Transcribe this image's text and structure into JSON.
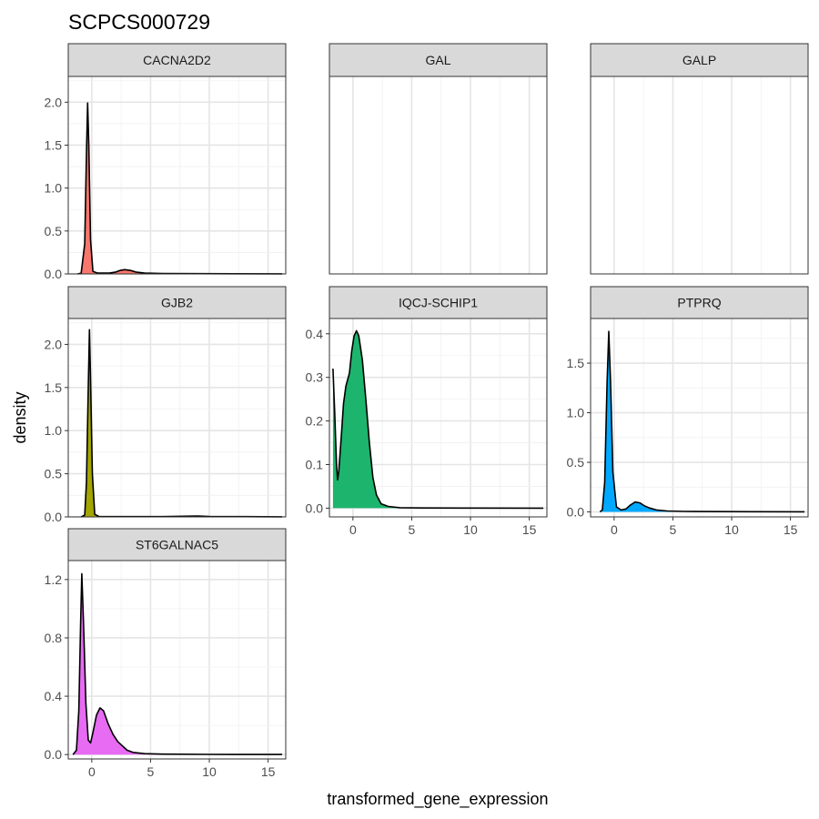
{
  "title": "SCPCS000729",
  "chart_data": {
    "type": "area",
    "title": "SCPCS000729",
    "xlabel": "transformed_gene_expression",
    "ylabel": "density",
    "xlim": [
      -2,
      16.5
    ],
    "x_ticks": [
      0,
      5,
      10,
      15
    ],
    "grid": true,
    "legend": "none",
    "facets": [
      {
        "name": "CACNA2D2",
        "color": "#F8766D",
        "ylim": [
          0,
          2.3
        ],
        "y_ticks": [
          0.0,
          0.5,
          1.0,
          1.5,
          2.0
        ],
        "points": [
          [
            -1.2,
            0
          ],
          [
            -0.9,
            0.01
          ],
          [
            -0.6,
            0.35
          ],
          [
            -0.45,
            1.4
          ],
          [
            -0.35,
            1.99
          ],
          [
            -0.25,
            1.5
          ],
          [
            -0.1,
            0.4
          ],
          [
            0.1,
            0.03
          ],
          [
            0.5,
            0.01
          ],
          [
            1.0,
            0.01
          ],
          [
            1.5,
            0.01
          ],
          [
            2.0,
            0.02
          ],
          [
            2.4,
            0.04
          ],
          [
            2.8,
            0.05
          ],
          [
            3.3,
            0.04
          ],
          [
            3.8,
            0.02
          ],
          [
            4.5,
            0.01
          ],
          [
            6,
            0.005
          ],
          [
            9,
            0.003
          ],
          [
            12,
            0.002
          ],
          [
            16.2,
            0.001
          ]
        ]
      },
      {
        "name": "GAL",
        "color": "#CD9600",
        "ylim": [
          0,
          2.3
        ],
        "y_ticks": [],
        "points": []
      },
      {
        "name": "GALP",
        "color": "#7CAE00",
        "ylim": [
          0,
          2.3
        ],
        "y_ticks": [],
        "points": []
      },
      {
        "name": "GJB2",
        "color": "#A3A500",
        "ylim": [
          0,
          2.3
        ],
        "y_ticks": [
          0.0,
          0.5,
          1.0,
          1.5,
          2.0
        ],
        "points": [
          [
            -0.9,
            0
          ],
          [
            -0.6,
            0.02
          ],
          [
            -0.45,
            0.4
          ],
          [
            -0.3,
            1.5
          ],
          [
            -0.2,
            2.17
          ],
          [
            -0.1,
            1.6
          ],
          [
            0.05,
            0.5
          ],
          [
            0.25,
            0.03
          ],
          [
            0.6,
            0.005
          ],
          [
            3,
            0.003
          ],
          [
            6,
            0.003
          ],
          [
            9,
            0.01
          ],
          [
            10,
            0.004
          ],
          [
            13,
            0.003
          ],
          [
            16.2,
            0.001
          ]
        ]
      },
      {
        "name": "IQCJ-SCHIP1",
        "color": "#1DB46E",
        "ylim": [
          -0.02,
          0.435
        ],
        "y_ticks": [
          0.0,
          0.1,
          0.2,
          0.3,
          0.4
        ],
        "points": [
          [
            -1.7,
            0.32
          ],
          [
            -1.55,
            0.22
          ],
          [
            -1.4,
            0.1
          ],
          [
            -1.3,
            0.065
          ],
          [
            -1.2,
            0.085
          ],
          [
            -1.0,
            0.16
          ],
          [
            -0.8,
            0.24
          ],
          [
            -0.6,
            0.28
          ],
          [
            -0.3,
            0.31
          ],
          [
            -0.1,
            0.36
          ],
          [
            0.1,
            0.395
          ],
          [
            0.3,
            0.407
          ],
          [
            0.5,
            0.395
          ],
          [
            0.8,
            0.34
          ],
          [
            1.1,
            0.25
          ],
          [
            1.4,
            0.15
          ],
          [
            1.7,
            0.07
          ],
          [
            2.0,
            0.03
          ],
          [
            2.4,
            0.01
          ],
          [
            3,
            0.004
          ],
          [
            4,
            0.001
          ],
          [
            6,
            0.0005
          ],
          [
            10,
            0.0003
          ],
          [
            16.2,
            0.0001
          ]
        ]
      },
      {
        "name": "PTPRQ",
        "color": "#00A9FF",
        "ylim": [
          -0.05,
          1.95
        ],
        "y_ticks": [
          0.0,
          0.5,
          1.0,
          1.5
        ],
        "points": [
          [
            -1.2,
            0
          ],
          [
            -1.0,
            0.02
          ],
          [
            -0.8,
            0.3
          ],
          [
            -0.6,
            1.3
          ],
          [
            -0.45,
            1.82
          ],
          [
            -0.3,
            1.3
          ],
          [
            -0.1,
            0.4
          ],
          [
            0.2,
            0.05
          ],
          [
            0.6,
            0.02
          ],
          [
            1.0,
            0.03
          ],
          [
            1.4,
            0.07
          ],
          [
            1.8,
            0.1
          ],
          [
            2.2,
            0.09
          ],
          [
            2.6,
            0.06
          ],
          [
            3.0,
            0.04
          ],
          [
            3.6,
            0.02
          ],
          [
            4.5,
            0.01
          ],
          [
            6,
            0.005
          ],
          [
            9,
            0.003
          ],
          [
            12,
            0.002
          ],
          [
            16.2,
            0.001
          ]
        ]
      },
      {
        "name": "ST6GALNAC5",
        "color": "#E76BF3",
        "ylim": [
          -0.03,
          1.33
        ],
        "y_ticks": [
          0.0,
          0.4,
          0.8,
          1.2
        ],
        "points": [
          [
            -1.6,
            0
          ],
          [
            -1.3,
            0.03
          ],
          [
            -1.1,
            0.3
          ],
          [
            -0.95,
            0.9
          ],
          [
            -0.85,
            1.24
          ],
          [
            -0.7,
            0.9
          ],
          [
            -0.5,
            0.35
          ],
          [
            -0.3,
            0.1
          ],
          [
            -0.1,
            0.08
          ],
          [
            0.1,
            0.15
          ],
          [
            0.4,
            0.27
          ],
          [
            0.7,
            0.32
          ],
          [
            1.0,
            0.3
          ],
          [
            1.4,
            0.21
          ],
          [
            1.8,
            0.14
          ],
          [
            2.2,
            0.09
          ],
          [
            2.6,
            0.06
          ],
          [
            3.0,
            0.03
          ],
          [
            3.5,
            0.015
          ],
          [
            4.5,
            0.006
          ],
          [
            6,
            0.003
          ],
          [
            10,
            0.001
          ],
          [
            16.2,
            0.0005
          ]
        ]
      }
    ]
  }
}
